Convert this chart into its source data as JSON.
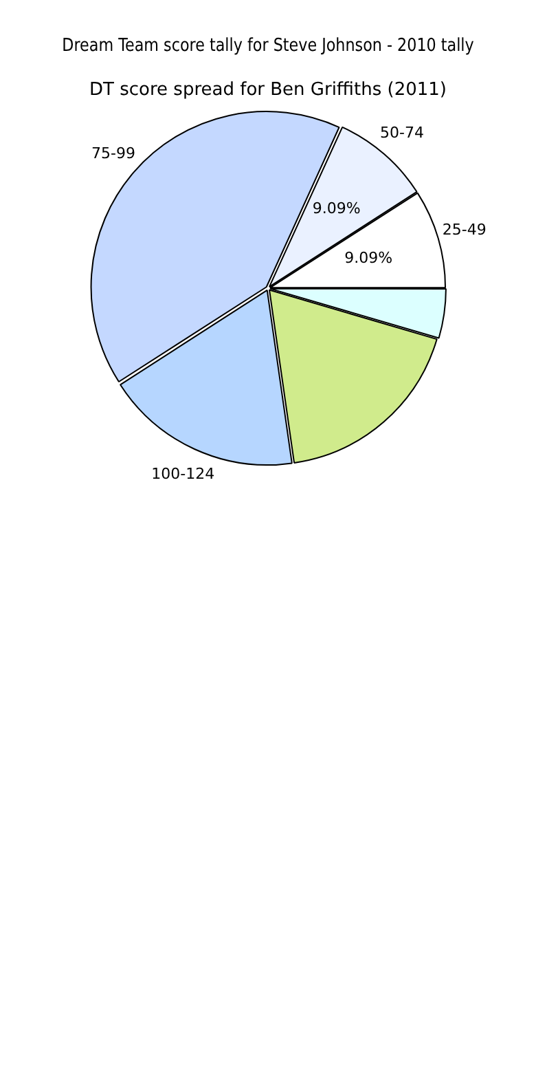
{
  "chart_data": {
    "type": "pie",
    "title": "Dream Team score tally for Steve Johnson - 2010 tally",
    "subtitle": "DT score spread for Ben Griffiths (2011)",
    "categories": [
      null,
      null,
      "100-124",
      "75-99",
      "50-74",
      "25-49"
    ],
    "values": [
      4.55,
      18.18,
      18.18,
      40.91,
      9.09,
      9.09
    ],
    "colors": [
      "#dcffff",
      "#d0eb8c",
      "#b6d6ff",
      "#c4d8ff",
      "#eaf1ff",
      "#ffffff"
    ],
    "value_labels": [
      null,
      null,
      null,
      null,
      "9.09%",
      "9.09%"
    ],
    "legend": false
  }
}
